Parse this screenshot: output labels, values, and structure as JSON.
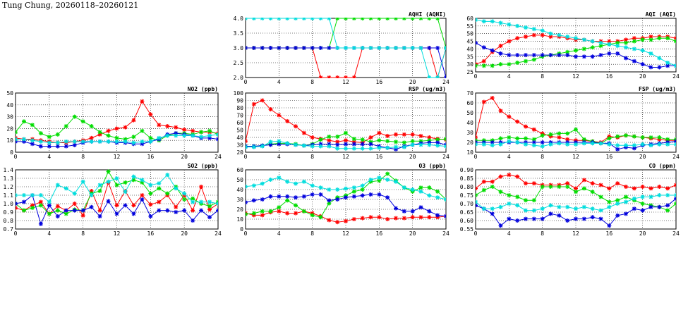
{
  "page": {
    "title": "Tung Chung, 20260118–20260121"
  },
  "colors": {
    "day1": "#ff0000",
    "day2": "#00dd00",
    "day3": "#0000dd",
    "day4": "#00dddd"
  },
  "chart_data": [
    {
      "id": "aqhi",
      "type": "line",
      "title": "AQHI (AQHI)",
      "xlim": [
        0,
        24
      ],
      "xticks": [
        0,
        4,
        8,
        12,
        16,
        20,
        24
      ],
      "ylim": [
        2.0,
        4.0
      ],
      "yticks": [
        "2.0",
        "2.5",
        "3.0",
        "3.5",
        "4.0"
      ],
      "grid": true,
      "series": [
        {
          "color": "#ff0000",
          "values": [
            3,
            3,
            3,
            3,
            3,
            3,
            3,
            3,
            3,
            2,
            2,
            2,
            2,
            2,
            3,
            3,
            3,
            3,
            3,
            3,
            3,
            3,
            3,
            2,
            3
          ]
        },
        {
          "color": "#00dd00",
          "values": [
            3,
            3,
            3,
            3,
            3,
            3,
            3,
            3,
            3,
            3,
            3,
            4,
            4,
            4,
            4,
            4,
            4,
            4,
            4,
            4,
            4,
            4,
            4,
            4,
            3
          ]
        },
        {
          "color": "#0000dd",
          "values": [
            3,
            3,
            3,
            3,
            3,
            3,
            3,
            3,
            3,
            3,
            3,
            3,
            3,
            3,
            3,
            3,
            3,
            3,
            3,
            3,
            3,
            3,
            3,
            3,
            2
          ]
        },
        {
          "color": "#00dddd",
          "values": [
            4,
            4,
            4,
            4,
            4,
            4,
            4,
            4,
            4,
            4,
            4,
            3,
            3,
            3,
            3,
            3,
            3,
            3,
            3,
            3,
            3,
            3,
            2,
            2,
            3
          ]
        }
      ]
    },
    {
      "id": "aqi",
      "type": "line",
      "title": "AQI (AQI)",
      "xlim": [
        0,
        24
      ],
      "xticks": [
        0,
        4,
        8,
        12,
        16,
        20,
        24
      ],
      "ylim": [
        25,
        60
      ],
      "yticks": [
        "25",
        "30",
        "35",
        "40",
        "45",
        "50",
        "55",
        "60"
      ],
      "grid": true,
      "series": [
        {
          "color": "#ff0000",
          "values": [
            30,
            32,
            38,
            42,
            45,
            47,
            48,
            49,
            49,
            48,
            48,
            47,
            46,
            46,
            45,
            45,
            45,
            45,
            46,
            47,
            47,
            48,
            48,
            48,
            47
          ]
        },
        {
          "color": "#00dd00",
          "values": [
            29,
            29,
            29,
            30,
            30,
            31,
            32,
            33,
            35,
            36,
            37,
            38,
            39,
            40,
            41,
            42,
            43,
            44,
            44,
            45,
            46,
            46,
            47,
            47,
            45
          ]
        },
        {
          "color": "#0000dd",
          "values": [
            44,
            41,
            39,
            37,
            36,
            36,
            36,
            36,
            36,
            36,
            36,
            36,
            35,
            35,
            35,
            36,
            37,
            37,
            34,
            32,
            30,
            28,
            28,
            29,
            29
          ]
        },
        {
          "color": "#00dddd",
          "values": [
            59,
            58,
            58,
            57,
            56,
            55,
            54,
            53,
            52,
            50,
            49,
            48,
            47,
            46,
            45,
            44,
            43,
            42,
            41,
            40,
            39,
            37,
            34,
            31,
            29
          ]
        }
      ]
    },
    {
      "id": "no2",
      "type": "line",
      "title": "NO2 (ppb)",
      "xlim": [
        0,
        24
      ],
      "xticks": [
        0,
        4,
        8,
        12,
        16,
        20,
        24
      ],
      "ylim": [
        0,
        50
      ],
      "yticks": [
        "0",
        "10",
        "20",
        "30",
        "40",
        "50"
      ],
      "grid": true,
      "series": [
        {
          "color": "#ff0000",
          "values": [
            12,
            11,
            11,
            10,
            9,
            8,
            8,
            9,
            10,
            12,
            15,
            18,
            20,
            21,
            27,
            43,
            32,
            23,
            22,
            21,
            19,
            18,
            17,
            17,
            16
          ]
        },
        {
          "color": "#00dd00",
          "values": [
            17,
            26,
            23,
            16,
            13,
            15,
            22,
            30,
            26,
            22,
            17,
            14,
            12,
            11,
            13,
            18,
            12,
            10,
            14,
            16,
            16,
            15,
            17,
            18,
            15
          ]
        },
        {
          "color": "#0000dd",
          "values": [
            9,
            9,
            7,
            5,
            5,
            5,
            5,
            6,
            8,
            9,
            9,
            9,
            8,
            8,
            7,
            7,
            9,
            11,
            15,
            16,
            15,
            14,
            12,
            12,
            11
          ]
        },
        {
          "color": "#00dddd",
          "values": [
            11,
            11,
            10,
            9,
            8,
            8,
            9,
            9,
            9,
            9,
            9,
            9,
            9,
            9,
            8,
            9,
            9,
            12,
            14,
            14,
            14,
            14,
            13,
            14,
            15
          ]
        }
      ]
    },
    {
      "id": "rsp",
      "type": "line",
      "title": "RSP (ug/m3)",
      "xlim": [
        0,
        24
      ],
      "xticks": [
        0,
        4,
        8,
        12,
        16,
        20,
        24
      ],
      "ylim": [
        20,
        100
      ],
      "yticks": [
        "20",
        "30",
        "40",
        "50",
        "60",
        "70",
        "80",
        "90",
        "100"
      ],
      "grid": true,
      "series": [
        {
          "color": "#ff0000",
          "values": [
            35,
            85,
            90,
            78,
            70,
            62,
            55,
            46,
            40,
            38,
            36,
            34,
            36,
            34,
            33,
            40,
            46,
            42,
            44,
            44,
            44,
            42,
            40,
            38,
            37
          ]
        },
        {
          "color": "#00dd00",
          "values": [
            28,
            28,
            29,
            31,
            32,
            32,
            31,
            29,
            31,
            37,
            41,
            41,
            46,
            38,
            37,
            34,
            36,
            35,
            34,
            33,
            35,
            35,
            36,
            37,
            38
          ]
        },
        {
          "color": "#0000dd",
          "values": [
            28,
            28,
            29,
            30,
            31,
            31,
            30,
            29,
            30,
            31,
            31,
            30,
            31,
            31,
            31,
            31,
            28,
            26,
            24,
            28,
            30,
            32,
            33,
            33,
            30
          ]
        },
        {
          "color": "#00dddd",
          "values": [
            27,
            27,
            28,
            34,
            35,
            32,
            30,
            29,
            28,
            28,
            28,
            25,
            25,
            25,
            25,
            25,
            26,
            26,
            27,
            27,
            30,
            30,
            30,
            29,
            28
          ]
        }
      ]
    },
    {
      "id": "fsp",
      "type": "line",
      "title": "FSP (ug/m3)",
      "xlim": [
        0,
        24
      ],
      "xticks": [
        0,
        4,
        8,
        12,
        16,
        20,
        24
      ],
      "ylim": [
        10,
        70
      ],
      "yticks": [
        "10",
        "20",
        "30",
        "40",
        "50",
        "60",
        "70"
      ],
      "grid": true,
      "series": [
        {
          "color": "#ff0000",
          "values": [
            25,
            61,
            65,
            52,
            46,
            41,
            36,
            33,
            29,
            26,
            25,
            23,
            22,
            22,
            21,
            20,
            26,
            25,
            27,
            26,
            25,
            24,
            23,
            22,
            22
          ]
        },
        {
          "color": "#00dd00",
          "values": [
            22,
            22,
            22,
            24,
            25,
            24,
            24,
            23,
            27,
            28,
            29,
            29,
            33,
            23,
            21,
            19,
            24,
            26,
            27,
            26,
            25,
            25,
            25,
            23,
            23
          ]
        },
        {
          "color": "#0000dd",
          "values": [
            20,
            20,
            20,
            20,
            20,
            20,
            20,
            20,
            20,
            20,
            20,
            20,
            20,
            20,
            20,
            19,
            19,
            13,
            15,
            14,
            17,
            18,
            19,
            20,
            21
          ]
        },
        {
          "color": "#00dddd",
          "values": [
            18,
            18,
            17,
            18,
            21,
            20,
            18,
            17,
            16,
            18,
            19,
            18,
            18,
            19,
            19,
            19,
            18,
            17,
            17,
            17,
            18,
            17,
            18,
            18,
            18
          ]
        }
      ]
    },
    {
      "id": "so2",
      "type": "line",
      "title": "SO2 (ppb)",
      "xlim": [
        0,
        24
      ],
      "xticks": [
        0,
        4,
        8,
        12,
        16,
        20,
        24
      ],
      "ylim": [
        0.7,
        1.4
      ],
      "yticks": [
        "0.7",
        "0.8",
        "0.9",
        "1.0",
        "1.1",
        "1.2",
        "1.3",
        "1.4"
      ],
      "grid": true,
      "series": [
        {
          "color": "#ff0000",
          "values": [
            0.95,
            0.92,
            0.98,
            1.02,
            0.88,
            0.97,
            0.92,
            1.0,
            0.86,
            1.15,
            0.92,
            1.25,
            0.98,
            1.15,
            0.98,
            1.1,
            0.99,
            1.02,
            1.1,
            0.96,
            1.1,
            0.92,
            1.2,
            0.93,
            1.0
          ]
        },
        {
          "color": "#00dd00",
          "values": [
            1.0,
            0.92,
            0.95,
            0.98,
            0.88,
            0.92,
            0.88,
            0.93,
            0.92,
            1.12,
            1.15,
            1.38,
            1.22,
            1.25,
            1.28,
            1.25,
            1.12,
            1.18,
            1.12,
            1.2,
            1.05,
            1.06,
            1.0,
            0.97,
            1.02
          ]
        },
        {
          "color": "#0000dd",
          "values": [
            1.0,
            1.02,
            1.1,
            0.76,
            0.98,
            0.85,
            0.92,
            0.92,
            0.92,
            0.96,
            0.85,
            1.03,
            0.88,
            0.98,
            0.88,
            1.05,
            0.85,
            0.92,
            0.92,
            0.9,
            0.92,
            0.8,
            0.92,
            0.84,
            0.92
          ]
        },
        {
          "color": "#00dddd",
          "values": [
            1.1,
            1.1,
            1.1,
            1.1,
            1.02,
            1.22,
            1.18,
            1.12,
            1.26,
            1.1,
            1.22,
            1.26,
            1.3,
            1.14,
            1.32,
            1.28,
            1.22,
            1.24,
            1.34,
            1.18,
            1.12,
            1.02,
            1.02,
            1.02,
            1.0
          ]
        }
      ]
    },
    {
      "id": "o3",
      "type": "line",
      "title": "O3 (ppb)",
      "xlim": [
        0,
        24
      ],
      "xticks": [
        0,
        4,
        8,
        12,
        16,
        20,
        24
      ],
      "ylim": [
        0,
        60
      ],
      "yticks": [
        "0",
        "10",
        "20",
        "30",
        "40",
        "50",
        "60"
      ],
      "grid": true,
      "series": [
        {
          "color": "#ff0000",
          "values": [
            16,
            14,
            14,
            17,
            18,
            16,
            16,
            18,
            16,
            13,
            9,
            7,
            8,
            10,
            11,
            12,
            12,
            10,
            11,
            11,
            12,
            12,
            12,
            12,
            13
          ]
        },
        {
          "color": "#00dd00",
          "values": [
            15,
            16,
            18,
            18,
            22,
            29,
            24,
            18,
            14,
            12,
            26,
            32,
            34,
            38,
            40,
            48,
            49,
            56,
            49,
            42,
            38,
            42,
            42,
            38,
            30
          ]
        },
        {
          "color": "#0000dd",
          "values": [
            27,
            29,
            30,
            33,
            33,
            33,
            32,
            33,
            35,
            35,
            29,
            30,
            32,
            33,
            34,
            35,
            35,
            32,
            21,
            18,
            18,
            22,
            18,
            14,
            13
          ]
        },
        {
          "color": "#00dddd",
          "values": [
            43,
            44,
            46,
            50,
            52,
            48,
            46,
            48,
            44,
            42,
            40,
            40,
            41,
            42,
            44,
            50,
            52,
            50,
            48,
            42,
            40,
            38,
            34,
            32,
            30
          ]
        }
      ]
    },
    {
      "id": "co",
      "type": "line",
      "title": "CO (ppm)",
      "xlim": [
        0,
        24
      ],
      "xticks": [
        0,
        4,
        8,
        12,
        16,
        20,
        24
      ],
      "ylim": [
        0.55,
        0.9
      ],
      "yticks": [
        "0.55",
        "0.60",
        "0.65",
        "0.70",
        "0.75",
        "0.80",
        "0.85",
        "0.90"
      ],
      "grid": true,
      "series": [
        {
          "color": "#ff0000",
          "values": [
            0.79,
            0.83,
            0.83,
            0.86,
            0.87,
            0.86,
            0.82,
            0.82,
            0.81,
            0.81,
            0.81,
            0.82,
            0.79,
            0.84,
            0.82,
            0.81,
            0.79,
            0.82,
            0.8,
            0.79,
            0.8,
            0.79,
            0.8,
            0.79,
            0.81
          ]
        },
        {
          "color": "#00dd00",
          "values": [
            0.75,
            0.78,
            0.8,
            0.77,
            0.75,
            0.74,
            0.72,
            0.72,
            0.8,
            0.8,
            0.8,
            0.8,
            0.77,
            0.79,
            0.77,
            0.74,
            0.71,
            0.72,
            0.74,
            0.72,
            0.7,
            0.69,
            0.68,
            0.66,
            0.7
          ]
        },
        {
          "color": "#0000dd",
          "values": [
            0.69,
            0.67,
            0.64,
            0.57,
            0.61,
            0.6,
            0.61,
            0.61,
            0.61,
            0.64,
            0.63,
            0.6,
            0.61,
            0.61,
            0.62,
            0.61,
            0.57,
            0.63,
            0.64,
            0.67,
            0.66,
            0.68,
            0.68,
            0.69,
            0.73
          ]
        },
        {
          "color": "#00dddd",
          "values": [
            0.71,
            0.67,
            0.67,
            0.68,
            0.7,
            0.69,
            0.66,
            0.66,
            0.67,
            0.69,
            0.68,
            0.68,
            0.67,
            0.68,
            0.67,
            0.66,
            0.68,
            0.7,
            0.71,
            0.73,
            0.74,
            0.74,
            0.75,
            0.75,
            0.75
          ]
        }
      ]
    }
  ]
}
